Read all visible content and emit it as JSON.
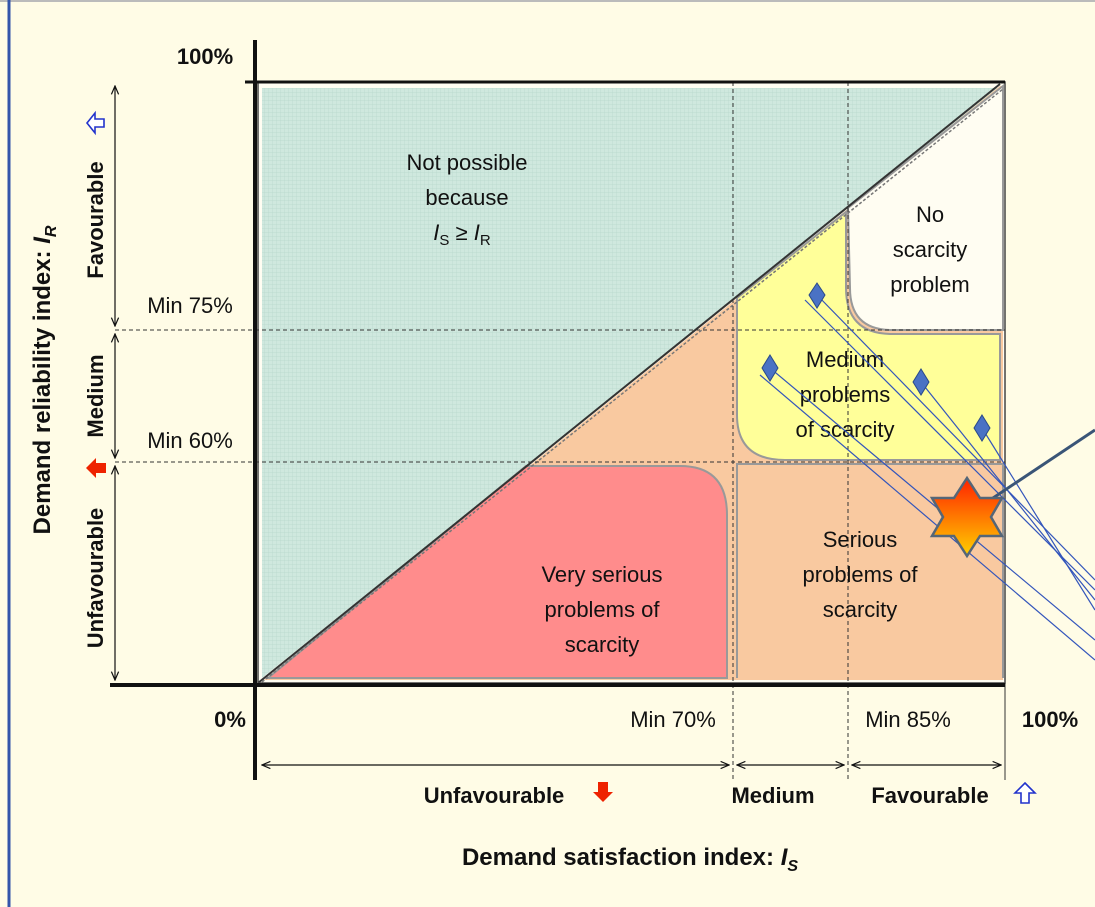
{
  "axis": {
    "y_top": "100%",
    "origin": "0%",
    "x_right": "100%",
    "x_min70": "Min 70%",
    "x_min85": "Min 85%",
    "y_min75": "Min 75%",
    "y_min60": "Min 60%"
  },
  "y_title": {
    "text": "Demand reliability index: ",
    "var": "I",
    "sub": "R"
  },
  "x_title": {
    "text": "Demand satisfaction index: ",
    "var": "I",
    "sub": "S"
  },
  "y_bands": [
    "Favourable",
    "Medium",
    "Unfavourable"
  ],
  "x_bands": [
    "Unfavourable",
    "Medium",
    "Favourable"
  ],
  "regions": {
    "not_possible": {
      "lines": [
        "Not possible",
        "because"
      ],
      "formula": {
        "a": "I",
        "a_sub": "S",
        "op": " ≥ ",
        "b": "I",
        "b_sub": "R"
      }
    },
    "no_scarcity": [
      "No",
      "scarcity",
      "problem"
    ],
    "medium": [
      "Medium",
      "problems",
      "of scarcity"
    ],
    "serious": [
      "Serious",
      "problems of",
      "scarcity"
    ],
    "very_serious": [
      "Very serious",
      "problems of",
      "scarcity"
    ]
  }
}
